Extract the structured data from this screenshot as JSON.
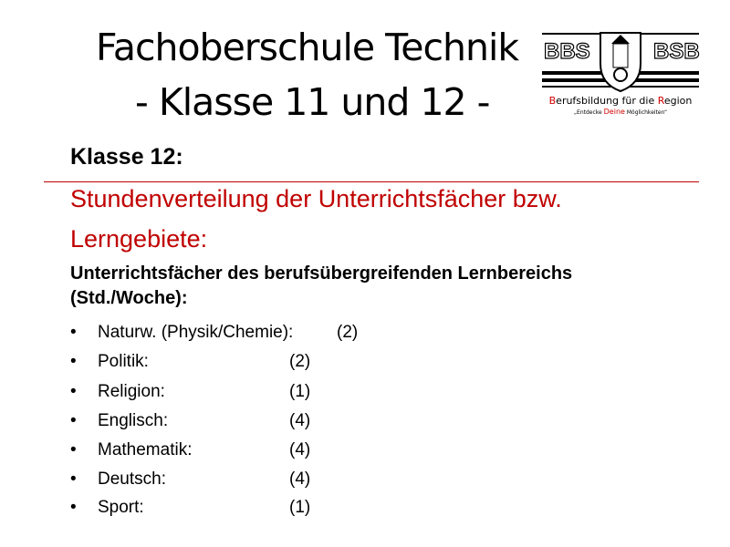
{
  "title": {
    "line1": "Fachoberschule Technik",
    "line2": "- Klasse 11 und 12 -"
  },
  "logo": {
    "left_text": "BBS",
    "right_text": "BSB",
    "slogan": "Berufsbildung für die Region",
    "tagline": "„Entdecke Deine Möglichkeiten“",
    "accent": "#d00000"
  },
  "heading": "Klasse 12:",
  "subtitle": {
    "line1": "Stundenverteilung der Unterrichtsfächer bzw.",
    "line2": "Lerngebiete:"
  },
  "section": {
    "line1": "Unterrichtsfächer des berufsübergreifenden Lernbereichs",
    "line2": "(Std./Woche):"
  },
  "bullet": "•",
  "items": [
    {
      "name": "Naturw. (Physik/Chemie):",
      "hours": "(2)"
    },
    {
      "name": "Politik:",
      "hours": "(2)"
    },
    {
      "name": "Religion:",
      "hours": "(1)"
    },
    {
      "name": "Englisch:",
      "hours": "(4)"
    },
    {
      "name": "Mathematik:",
      "hours": "(4)"
    },
    {
      "name": "Deutsch:",
      "hours": "(4)"
    },
    {
      "name": "Sport:",
      "hours": "(1)"
    }
  ]
}
